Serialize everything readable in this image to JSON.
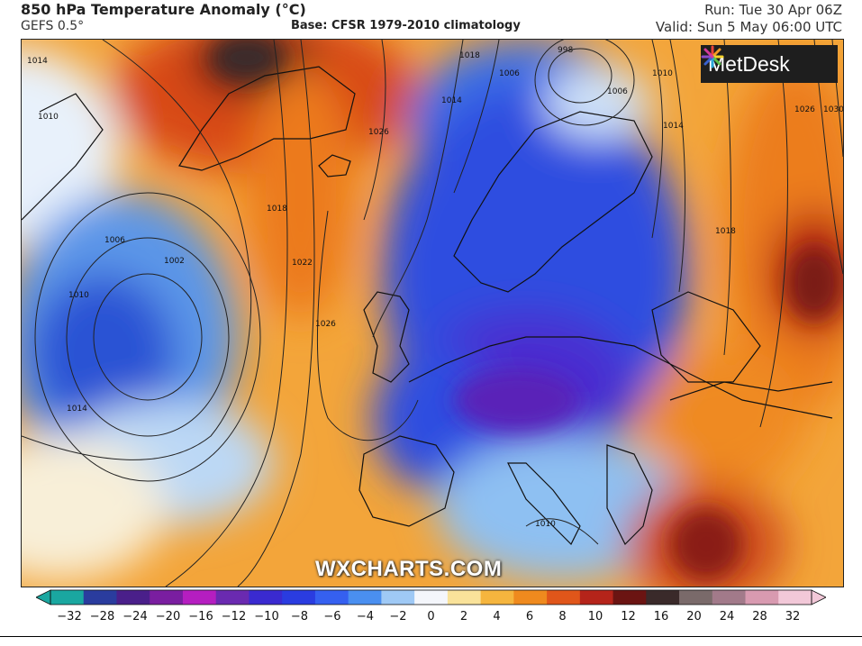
{
  "header": {
    "title": "850 hPa Temperature Anomaly (°C)",
    "model": "GEFS 0.5°",
    "base": "Base: CFSR 1979-2010 climatology",
    "run": "Run: Tue 30 Apr 06Z",
    "valid": "Valid: Sun 5 May 06:00 UTC"
  },
  "logo": {
    "text": "MetDesk",
    "icon": "metdesk-star-icon"
  },
  "watermark": "WXCHARTS.COM",
  "isobar_labels": [
    "1014",
    "1010",
    "1006",
    "1002",
    "1010",
    "1014",
    "1018",
    "1022",
    "1026",
    "1026",
    "1018",
    "1014",
    "1006",
    "998",
    "1006",
    "1010",
    "1014",
    "1018",
    "1026",
    "1030",
    "1010"
  ],
  "colorbar": {
    "ticks": [
      "−32",
      "−28",
      "−24",
      "−20",
      "−16",
      "−12",
      "−10",
      "−8",
      "−6",
      "−4",
      "−2",
      "0",
      "2",
      "4",
      "6",
      "8",
      "10",
      "12",
      "16",
      "20",
      "24",
      "28",
      "32"
    ],
    "colors": [
      "#1aa7a0",
      "#2a3c9e",
      "#4a1f8a",
      "#7a1ea0",
      "#b51ec0",
      "#6a2ab0",
      "#3a2ad0",
      "#2a3ce0",
      "#3560f0",
      "#4a8ff0",
      "#9fc9f5",
      "#f4f6fb",
      "#f9e29a",
      "#f5b53e",
      "#ef8a1e",
      "#e0561a",
      "#b5241a",
      "#6b1412",
      "#3a2a2a",
      "#7a6a6a",
      "#a27a8a",
      "#d89ab0",
      "#f2c8d8"
    ]
  }
}
